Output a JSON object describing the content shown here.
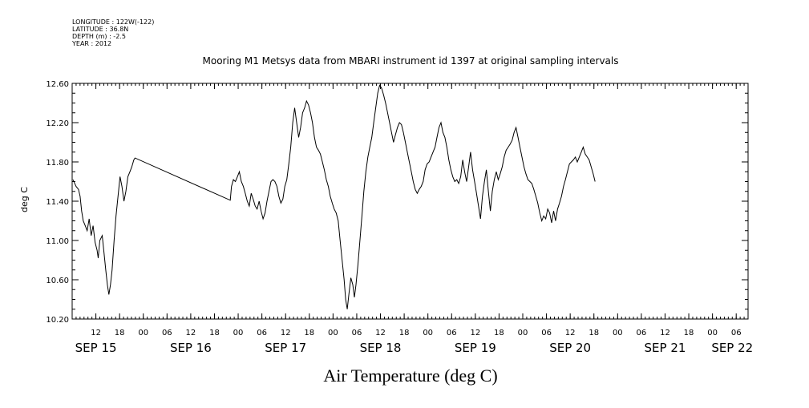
{
  "meta": {
    "longitude": "LONGITUDE : 122W(-122)",
    "latitude": "LATITUDE : 36.8N",
    "depth": "DEPTH (m) : -2.5",
    "year": "YEAR : 2012"
  },
  "chart_data": {
    "type": "line",
    "title": "Mooring M1 Metsys data from MBARI instrument id 1397 at original sampling intervals",
    "xlabel": "Air Temperature (deg C)",
    "ylabel": "deg C",
    "xlim": [
      6,
      177
    ],
    "ylim": [
      10.2,
      12.6
    ],
    "yticks": [
      "10.20",
      "10.60",
      "11.00",
      "11.40",
      "11.80",
      "12.20",
      "12.60"
    ],
    "x_hour_ticks": [
      {
        "h": 12,
        "label": "12"
      },
      {
        "h": 18,
        "label": "18"
      },
      {
        "h": 24,
        "label": "00"
      },
      {
        "h": 30,
        "label": "06"
      },
      {
        "h": 36,
        "label": "12"
      },
      {
        "h": 42,
        "label": "18"
      },
      {
        "h": 48,
        "label": "00"
      },
      {
        "h": 54,
        "label": "06"
      },
      {
        "h": 60,
        "label": "12"
      },
      {
        "h": 66,
        "label": "18"
      },
      {
        "h": 72,
        "label": "00"
      },
      {
        "h": 78,
        "label": "06"
      },
      {
        "h": 84,
        "label": "12"
      },
      {
        "h": 90,
        "label": "18"
      },
      {
        "h": 96,
        "label": "00"
      },
      {
        "h": 102,
        "label": "06"
      },
      {
        "h": 108,
        "label": "12"
      },
      {
        "h": 114,
        "label": "18"
      },
      {
        "h": 120,
        "label": "00"
      },
      {
        "h": 126,
        "label": "06"
      },
      {
        "h": 132,
        "label": "12"
      },
      {
        "h": 138,
        "label": "18"
      },
      {
        "h": 144,
        "label": "00"
      },
      {
        "h": 150,
        "label": "06"
      },
      {
        "h": 156,
        "label": "12"
      },
      {
        "h": 162,
        "label": "18"
      },
      {
        "h": 168,
        "label": "00"
      },
      {
        "h": 174,
        "label": "06"
      }
    ],
    "x_day_labels": [
      {
        "h": 12,
        "label": "SEP 15"
      },
      {
        "h": 36,
        "label": "SEP 16"
      },
      {
        "h": 60,
        "label": "SEP 17"
      },
      {
        "h": 84,
        "label": "SEP 18"
      },
      {
        "h": 108,
        "label": "SEP 19"
      },
      {
        "h": 132,
        "label": "SEP 20"
      },
      {
        "h": 156,
        "label": "SEP 21"
      },
      {
        "h": 173,
        "label": "SEP 22"
      }
    ],
    "series": [
      {
        "values": [
          [
            6.2,
            11.62
          ],
          [
            7.0,
            11.55
          ],
          [
            7.6,
            11.52
          ],
          [
            8.0,
            11.45
          ],
          [
            8.4,
            11.3
          ],
          [
            8.8,
            11.2
          ],
          [
            9.3,
            11.15
          ],
          [
            9.8,
            11.1
          ],
          [
            10.3,
            11.22
          ],
          [
            10.8,
            11.05
          ],
          [
            11.3,
            11.15
          ],
          [
            11.8,
            10.98
          ],
          [
            12.3,
            10.9
          ],
          [
            12.6,
            10.82
          ],
          [
            13.0,
            11.0
          ],
          [
            13.6,
            11.05
          ],
          [
            14.0,
            10.9
          ],
          [
            14.5,
            10.7
          ],
          [
            14.9,
            10.55
          ],
          [
            15.3,
            10.45
          ],
          [
            15.7,
            10.55
          ],
          [
            16.1,
            10.7
          ],
          [
            16.6,
            11.0
          ],
          [
            17.1,
            11.25
          ],
          [
            17.6,
            11.45
          ],
          [
            18.1,
            11.65
          ],
          [
            18.6,
            11.55
          ],
          [
            19.1,
            11.4
          ],
          [
            19.6,
            11.5
          ],
          [
            20.1,
            11.65
          ],
          [
            20.6,
            11.7
          ],
          [
            21.1,
            11.75
          ],
          [
            21.6,
            11.82
          ],
          [
            21.9,
            11.84
          ],
          [
            46.0,
            11.41
          ],
          [
            46.3,
            11.55
          ],
          [
            46.8,
            11.62
          ],
          [
            47.3,
            11.6
          ],
          [
            47.8,
            11.65
          ],
          [
            48.3,
            11.7
          ],
          [
            48.8,
            11.6
          ],
          [
            49.3,
            11.55
          ],
          [
            49.8,
            11.48
          ],
          [
            50.3,
            11.4
          ],
          [
            50.8,
            11.35
          ],
          [
            51.3,
            11.48
          ],
          [
            51.8,
            11.42
          ],
          [
            52.3,
            11.35
          ],
          [
            52.8,
            11.32
          ],
          [
            53.3,
            11.4
          ],
          [
            53.8,
            11.3
          ],
          [
            54.3,
            11.22
          ],
          [
            54.8,
            11.28
          ],
          [
            55.3,
            11.4
          ],
          [
            55.8,
            11.5
          ],
          [
            56.3,
            11.6
          ],
          [
            56.8,
            11.62
          ],
          [
            57.3,
            11.6
          ],
          [
            57.8,
            11.55
          ],
          [
            58.3,
            11.45
          ],
          [
            58.8,
            11.38
          ],
          [
            59.3,
            11.42
          ],
          [
            59.8,
            11.55
          ],
          [
            60.3,
            11.62
          ],
          [
            60.8,
            11.78
          ],
          [
            61.3,
            11.95
          ],
          [
            61.8,
            12.2
          ],
          [
            62.3,
            12.35
          ],
          [
            62.8,
            12.2
          ],
          [
            63.3,
            12.05
          ],
          [
            63.8,
            12.15
          ],
          [
            64.3,
            12.3
          ],
          [
            64.8,
            12.35
          ],
          [
            65.3,
            12.42
          ],
          [
            65.8,
            12.38
          ],
          [
            66.3,
            12.3
          ],
          [
            66.8,
            12.2
          ],
          [
            67.3,
            12.05
          ],
          [
            67.8,
            11.95
          ],
          [
            68.3,
            11.92
          ],
          [
            68.8,
            11.88
          ],
          [
            69.3,
            11.8
          ],
          [
            69.8,
            11.72
          ],
          [
            70.3,
            11.62
          ],
          [
            70.8,
            11.55
          ],
          [
            71.3,
            11.45
          ],
          [
            71.8,
            11.38
          ],
          [
            72.3,
            11.32
          ],
          [
            72.8,
            11.28
          ],
          [
            73.3,
            11.2
          ],
          [
            73.8,
            11.0
          ],
          [
            74.3,
            10.8
          ],
          [
            74.8,
            10.6
          ],
          [
            75.2,
            10.4
          ],
          [
            75.6,
            10.3
          ],
          [
            76.0,
            10.45
          ],
          [
            76.5,
            10.62
          ],
          [
            77.0,
            10.55
          ],
          [
            77.4,
            10.42
          ],
          [
            77.8,
            10.55
          ],
          [
            78.3,
            10.75
          ],
          [
            78.8,
            11.0
          ],
          [
            79.3,
            11.25
          ],
          [
            79.8,
            11.5
          ],
          [
            80.3,
            11.7
          ],
          [
            80.8,
            11.85
          ],
          [
            81.3,
            11.95
          ],
          [
            81.8,
            12.05
          ],
          [
            82.3,
            12.2
          ],
          [
            82.8,
            12.35
          ],
          [
            83.3,
            12.5
          ],
          [
            83.8,
            12.58
          ],
          [
            84.3,
            12.55
          ],
          [
            84.8,
            12.48
          ],
          [
            85.3,
            12.4
          ],
          [
            85.8,
            12.3
          ],
          [
            86.3,
            12.2
          ],
          [
            86.8,
            12.1
          ],
          [
            87.3,
            12.0
          ],
          [
            87.8,
            12.08
          ],
          [
            88.3,
            12.15
          ],
          [
            88.8,
            12.2
          ],
          [
            89.3,
            12.18
          ],
          [
            89.8,
            12.1
          ],
          [
            90.3,
            12.0
          ],
          [
            90.8,
            11.9
          ],
          [
            91.3,
            11.8
          ],
          [
            91.8,
            11.7
          ],
          [
            92.3,
            11.6
          ],
          [
            92.8,
            11.52
          ],
          [
            93.3,
            11.48
          ],
          [
            93.8,
            11.52
          ],
          [
            94.3,
            11.55
          ],
          [
            94.8,
            11.6
          ],
          [
            95.3,
            11.72
          ],
          [
            95.8,
            11.78
          ],
          [
            96.3,
            11.8
          ],
          [
            96.8,
            11.85
          ],
          [
            97.3,
            11.9
          ],
          [
            97.8,
            11.95
          ],
          [
            98.3,
            12.05
          ],
          [
            98.8,
            12.15
          ],
          [
            99.3,
            12.2
          ],
          [
            99.8,
            12.1
          ],
          [
            100.3,
            12.05
          ],
          [
            100.8,
            11.95
          ],
          [
            101.3,
            11.82
          ],
          [
            101.8,
            11.72
          ],
          [
            102.3,
            11.65
          ],
          [
            102.8,
            11.6
          ],
          [
            103.3,
            11.62
          ],
          [
            103.8,
            11.58
          ],
          [
            104.3,
            11.65
          ],
          [
            104.8,
            11.82
          ],
          [
            105.3,
            11.7
          ],
          [
            105.8,
            11.6
          ],
          [
            106.3,
            11.75
          ],
          [
            106.8,
            11.9
          ],
          [
            107.3,
            11.72
          ],
          [
            107.8,
            11.6
          ],
          [
            108.3,
            11.48
          ],
          [
            108.8,
            11.35
          ],
          [
            109.3,
            11.22
          ],
          [
            109.8,
            11.45
          ],
          [
            110.3,
            11.6
          ],
          [
            110.8,
            11.72
          ],
          [
            111.3,
            11.5
          ],
          [
            111.8,
            11.3
          ],
          [
            112.3,
            11.5
          ],
          [
            112.8,
            11.62
          ],
          [
            113.3,
            11.7
          ],
          [
            113.8,
            11.62
          ],
          [
            114.3,
            11.68
          ],
          [
            114.8,
            11.75
          ],
          [
            115.3,
            11.85
          ],
          [
            115.8,
            11.92
          ],
          [
            116.3,
            11.95
          ],
          [
            116.8,
            11.98
          ],
          [
            117.3,
            12.02
          ],
          [
            117.8,
            12.1
          ],
          [
            118.3,
            12.15
          ],
          [
            118.8,
            12.05
          ],
          [
            119.3,
            11.95
          ],
          [
            119.8,
            11.85
          ],
          [
            120.3,
            11.75
          ],
          [
            120.8,
            11.68
          ],
          [
            121.3,
            11.62
          ],
          [
            121.8,
            11.6
          ],
          [
            122.3,
            11.58
          ],
          [
            122.8,
            11.52
          ],
          [
            123.3,
            11.45
          ],
          [
            123.8,
            11.38
          ],
          [
            124.3,
            11.28
          ],
          [
            124.8,
            11.2
          ],
          [
            125.3,
            11.25
          ],
          [
            125.8,
            11.22
          ],
          [
            126.3,
            11.32
          ],
          [
            126.8,
            11.28
          ],
          [
            127.3,
            11.18
          ],
          [
            127.8,
            11.3
          ],
          [
            128.3,
            11.2
          ],
          [
            128.8,
            11.32
          ],
          [
            129.3,
            11.38
          ],
          [
            129.8,
            11.45
          ],
          [
            130.3,
            11.55
          ],
          [
            130.8,
            11.62
          ],
          [
            131.3,
            11.7
          ],
          [
            131.8,
            11.78
          ],
          [
            132.3,
            11.8
          ],
          [
            132.8,
            11.82
          ],
          [
            133.3,
            11.85
          ],
          [
            133.8,
            11.8
          ],
          [
            134.3,
            11.85
          ],
          [
            134.8,
            11.9
          ],
          [
            135.3,
            11.95
          ],
          [
            135.8,
            11.88
          ],
          [
            136.3,
            11.85
          ],
          [
            136.8,
            11.82
          ],
          [
            137.3,
            11.75
          ],
          [
            137.8,
            11.68
          ],
          [
            138.3,
            11.6
          ]
        ]
      }
    ]
  }
}
